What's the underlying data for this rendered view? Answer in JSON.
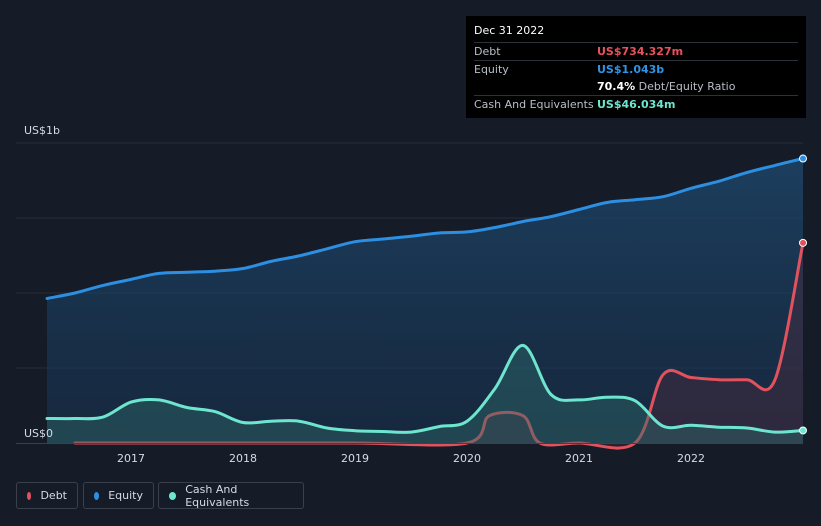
{
  "colors": {
    "debt": "#e0525d",
    "equity": "#2d8fe2",
    "cash": "#6ee6cf",
    "background": "#151b27"
  },
  "tooltip": {
    "date": "Dec 31 2022",
    "rows": [
      {
        "label": "Debt",
        "value": "US$734.327m",
        "color": "#e9515b"
      },
      {
        "label": "Equity",
        "value": "US$1.043b",
        "color": "#2f94e6"
      },
      {
        "label": "",
        "value": "70.4%",
        "suffix": "Debt/Equity Ratio",
        "color": "#ffffff"
      },
      {
        "label": "Cash And Equivalents",
        "value": "US$46.034m",
        "color": "#6ee6cf"
      }
    ]
  },
  "legend": [
    {
      "name": "Debt",
      "color": "#e0525d"
    },
    {
      "name": "Equity",
      "color": "#2d8fe2"
    },
    {
      "name": "Cash And Equivalents",
      "color": "#6ee6cf"
    }
  ],
  "chart_data": {
    "type": "area",
    "y_unit": "US$ m",
    "ylim": [
      0,
      1100
    ],
    "xlim": [
      2016.25,
      2023.0
    ],
    "x_ticks": [
      2017,
      2018,
      2019,
      2020,
      2021,
      2022
    ],
    "y_tick_labels": [
      {
        "value": 1100,
        "label": "US$1b"
      },
      {
        "value": 0,
        "label": "US$0"
      }
    ],
    "grid": true,
    "legend_position": "bottom-left",
    "series": [
      {
        "name": "Equity",
        "color": "#2d8fe2",
        "points": [
          [
            2016.25,
            530
          ],
          [
            2016.5,
            550
          ],
          [
            2016.75,
            578
          ],
          [
            2017.0,
            600
          ],
          [
            2017.25,
            622
          ],
          [
            2017.5,
            626
          ],
          [
            2017.75,
            630
          ],
          [
            2018.0,
            640
          ],
          [
            2018.25,
            666
          ],
          [
            2018.5,
            686
          ],
          [
            2018.75,
            712
          ],
          [
            2019.0,
            738
          ],
          [
            2019.25,
            748
          ],
          [
            2019.5,
            758
          ],
          [
            2019.75,
            770
          ],
          [
            2020.0,
            774
          ],
          [
            2020.25,
            790
          ],
          [
            2020.5,
            812
          ],
          [
            2020.75,
            830
          ],
          [
            2021.0,
            856
          ],
          [
            2021.25,
            882
          ],
          [
            2021.5,
            892
          ],
          [
            2021.75,
            903
          ],
          [
            2022.0,
            934
          ],
          [
            2022.25,
            960
          ],
          [
            2022.5,
            992
          ],
          [
            2022.75,
            1018
          ],
          [
            2023.0,
            1043
          ]
        ]
      },
      {
        "name": "Debt",
        "color": "#e0525d",
        "points": [
          [
            2016.5,
            0
          ],
          [
            2017.0,
            0
          ],
          [
            2018.0,
            0
          ],
          [
            2019.0,
            0
          ],
          [
            2020.0,
            0
          ],
          [
            2020.2,
            100
          ],
          [
            2020.5,
            100
          ],
          [
            2020.65,
            0
          ],
          [
            2021.0,
            0
          ],
          [
            2021.5,
            0
          ],
          [
            2021.75,
            250
          ],
          [
            2022.0,
            240
          ],
          [
            2022.25,
            232
          ],
          [
            2022.5,
            232
          ],
          [
            2022.75,
            232
          ],
          [
            2023.0,
            734
          ]
        ]
      },
      {
        "name": "Cash And Equivalents",
        "color": "#6ee6cf",
        "points": [
          [
            2016.25,
            90
          ],
          [
            2016.5,
            90
          ],
          [
            2016.75,
            95
          ],
          [
            2017.0,
            150
          ],
          [
            2017.25,
            158
          ],
          [
            2017.5,
            130
          ],
          [
            2017.75,
            115
          ],
          [
            2018.0,
            75
          ],
          [
            2018.25,
            80
          ],
          [
            2018.5,
            80
          ],
          [
            2018.75,
            55
          ],
          [
            2019.0,
            45
          ],
          [
            2019.25,
            42
          ],
          [
            2019.5,
            40
          ],
          [
            2019.75,
            60
          ],
          [
            2020.0,
            80
          ],
          [
            2020.25,
            200
          ],
          [
            2020.5,
            358
          ],
          [
            2020.75,
            178
          ],
          [
            2021.0,
            158
          ],
          [
            2021.25,
            168
          ],
          [
            2021.5,
            155
          ],
          [
            2021.75,
            62
          ],
          [
            2022.0,
            65
          ],
          [
            2022.25,
            58
          ],
          [
            2022.5,
            55
          ],
          [
            2022.75,
            40
          ],
          [
            2023.0,
            46
          ]
        ]
      }
    ]
  }
}
